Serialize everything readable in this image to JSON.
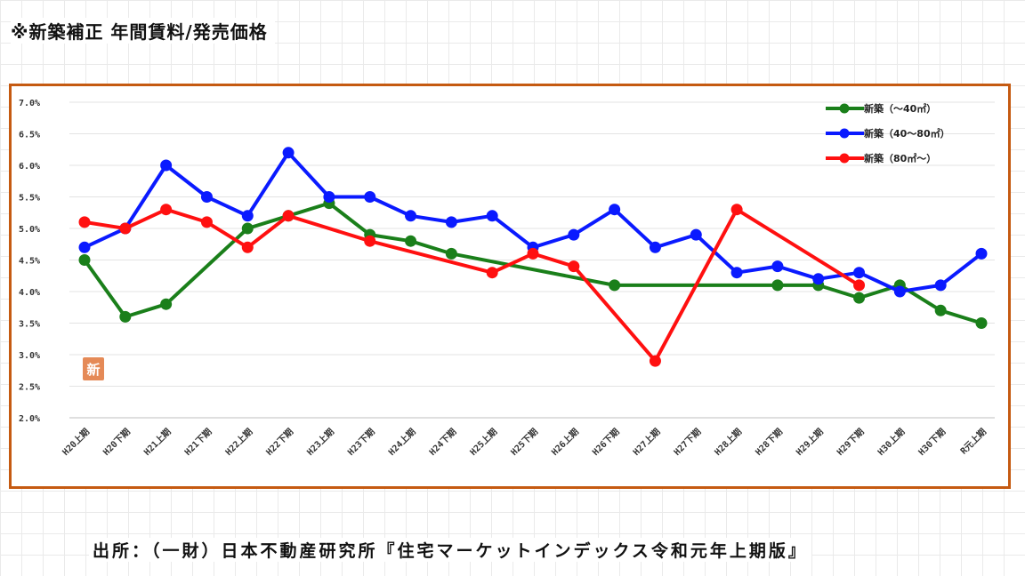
{
  "title": "※新築補正 年間賃料/発売価格",
  "source": "出所：（一財）日本不動産研究所『住宅マーケットインデックス令和元年上期版』",
  "stamp_text": "新",
  "colors": {
    "frame": "#c55a11",
    "green": "#1a7f1a",
    "blue": "#0a1aff",
    "red": "#ff1010"
  },
  "chart_data": {
    "type": "line",
    "categories": [
      "H20上期",
      "H20下期",
      "H21上期",
      "H21下期",
      "H22上期",
      "H22下期",
      "H23上期",
      "H23下期",
      "H24上期",
      "H24下期",
      "H25上期",
      "H25下期",
      "H26上期",
      "H26下期",
      "H27上期",
      "H27下期",
      "H28上期",
      "H28下期",
      "H29上期",
      "H29下期",
      "H30上期",
      "H30下期",
      "R元上期"
    ],
    "yticks": [
      "7.0%",
      "6.5%",
      "6.0%",
      "5.5%",
      "5.0%",
      "4.5%",
      "4.0%",
      "3.5%",
      "3.0%",
      "2.5%",
      "2.0%"
    ],
    "ylim": [
      2.0,
      7.0
    ],
    "grid": "horizontal",
    "legend_position": "top-right",
    "series": [
      {
        "name": "新築（～40㎡）",
        "color": "#1a7f1a",
        "values": [
          4.5,
          3.6,
          3.8,
          null,
          5.0,
          5.2,
          5.4,
          4.9,
          4.8,
          4.6,
          null,
          null,
          null,
          4.1,
          null,
          null,
          null,
          4.1,
          4.1,
          3.9,
          4.1,
          3.7,
          3.5
        ]
      },
      {
        "name": "新築（40～80㎡）",
        "color": "#0a1aff",
        "values": [
          4.7,
          5.0,
          6.0,
          5.5,
          5.2,
          6.2,
          5.5,
          5.5,
          5.2,
          5.1,
          5.2,
          4.7,
          4.9,
          5.3,
          4.7,
          4.9,
          4.3,
          4.4,
          4.2,
          4.3,
          4.0,
          4.1,
          4.6
        ]
      },
      {
        "name": "新築（80㎡～）",
        "color": "#ff1010",
        "values": [
          5.1,
          5.0,
          5.3,
          5.1,
          4.7,
          5.2,
          null,
          4.8,
          null,
          null,
          4.3,
          4.6,
          4.4,
          null,
          2.9,
          null,
          5.3,
          null,
          null,
          4.1,
          null,
          null,
          null
        ]
      }
    ]
  }
}
